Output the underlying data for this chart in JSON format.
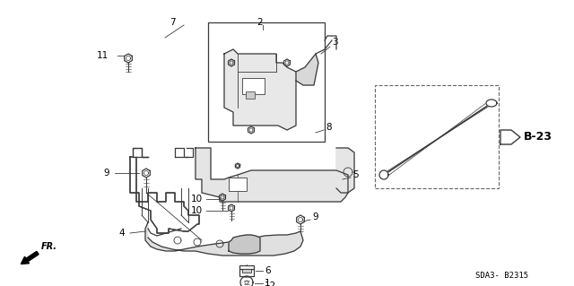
{
  "bg_color": "#ffffff",
  "fig_width": 6.4,
  "fig_height": 3.19,
  "dpi": 100,
  "line_color": "#3a3a3a",
  "sda_text": "SDA3- B2315",
  "b23_text": "B-23"
}
